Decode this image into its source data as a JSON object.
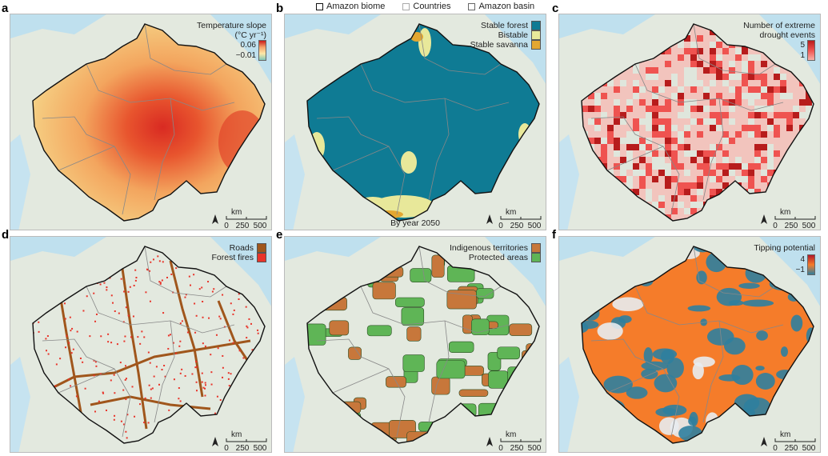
{
  "top_legend": {
    "items": [
      {
        "label": "Amazon biome"
      },
      {
        "label": "Countries"
      },
      {
        "label": "Amazon basin"
      }
    ]
  },
  "panels": [
    {
      "letter": "a",
      "legend_title": "Temperature slope (°C yr⁻¹)",
      "colorbar": {
        "max": "0.06",
        "min": "−0.01",
        "colors": [
          "#c81a1a",
          "#f5a36a",
          "#fde8a8",
          "#7fc7b8"
        ]
      },
      "fill_colors": [
        "#f6d98c",
        "#f3a55e",
        "#e8552e",
        "#d92a22"
      ]
    },
    {
      "letter": "b",
      "legend_items": [
        {
          "label": "Stable forest",
          "color": "#0f7b94"
        },
        {
          "label": "Bistable",
          "color": "#e8e89a"
        },
        {
          "label": "Stable savanna",
          "color": "#e3a731"
        }
      ],
      "caption": "By year 2050"
    },
    {
      "letter": "c",
      "legend_title": "Number of extreme drought events",
      "colorbar": {
        "max": "5",
        "min": "1",
        "colors": [
          "#b71c1c",
          "#ef5350",
          "#f7b2aa"
        ]
      }
    },
    {
      "letter": "d",
      "legend_items": [
        {
          "label": "Roads",
          "color": "#a0561c"
        },
        {
          "label": "Forest fires",
          "color": "#e8342a"
        }
      ]
    },
    {
      "letter": "e",
      "legend_items": [
        {
          "label": "Indigenous territories",
          "color": "#c7773b"
        },
        {
          "label": "Protected areas",
          "color": "#5fb556"
        }
      ]
    },
    {
      "letter": "f",
      "legend_title": "Tipping potential",
      "colorbar": {
        "max": "4",
        "min": "−1",
        "colors": [
          "#b2182b",
          "#f57c2a",
          "#2f7f9e"
        ]
      }
    }
  ],
  "scale_bar": {
    "unit": "km",
    "ticks": [
      "0",
      "250",
      "500"
    ]
  },
  "north_arrow": "north-arrow-icon"
}
